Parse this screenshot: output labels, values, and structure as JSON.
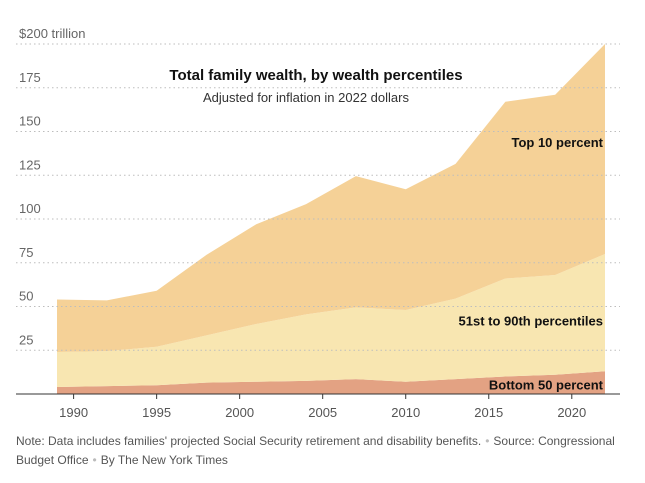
{
  "chart_data": {
    "type": "area",
    "stacked": true,
    "title": "Total family wealth, by wealth percentiles",
    "subtitle": "Adjusted for inflation in 2022 dollars",
    "xlabel": "",
    "ylabel": "",
    "x": [
      1989,
      1992,
      1995,
      1998,
      2001,
      2004,
      2007,
      2010,
      2013,
      2016,
      2019,
      2022
    ],
    "x_ticks": [
      "1990",
      "1995",
      "2000",
      "2005",
      "2010",
      "2015",
      "2020"
    ],
    "x_tick_values": [
      1990,
      1995,
      2000,
      2005,
      2010,
      2015,
      2020
    ],
    "xlim": [
      1988.2,
      2023
    ],
    "ylim": [
      0,
      200
    ],
    "y_ticks": [
      {
        "value": 25,
        "label": "25"
      },
      {
        "value": 50,
        "label": "50"
      },
      {
        "value": 75,
        "label": "75"
      },
      {
        "value": 100,
        "label": "100"
      },
      {
        "value": 125,
        "label": "125"
      },
      {
        "value": 150,
        "label": "150"
      },
      {
        "value": 175,
        "label": "175"
      },
      {
        "value": 200,
        "label": "$200 trillion"
      }
    ],
    "grid": true,
    "series": [
      {
        "name": "Bottom 50 percent",
        "color": "#e3a283",
        "values": [
          4,
          4.5,
          5,
          6.5,
          7,
          7.5,
          8.5,
          7,
          8.5,
          10,
          11,
          13
        ]
      },
      {
        "name": "51st to 90th percentiles",
        "color": "#f8e6b1",
        "values": [
          20,
          20,
          22,
          27,
          33,
          38,
          41,
          41,
          46,
          56,
          57,
          67
        ]
      },
      {
        "name": "Top 10 percent",
        "color": "#f5d197",
        "values": [
          30,
          29,
          32,
          46,
          57,
          63,
          75,
          69,
          77,
          101,
          103,
          120
        ]
      }
    ],
    "label_colors": {
      "text": "#111111",
      "grid": "#cccccc",
      "axis": "#333333"
    }
  },
  "note": {
    "text": "Note: Data includes families' projected Social Security retirement and disability benefits.",
    "source": "Source: Congressional Budget Office",
    "byline": "By The New York Times"
  }
}
